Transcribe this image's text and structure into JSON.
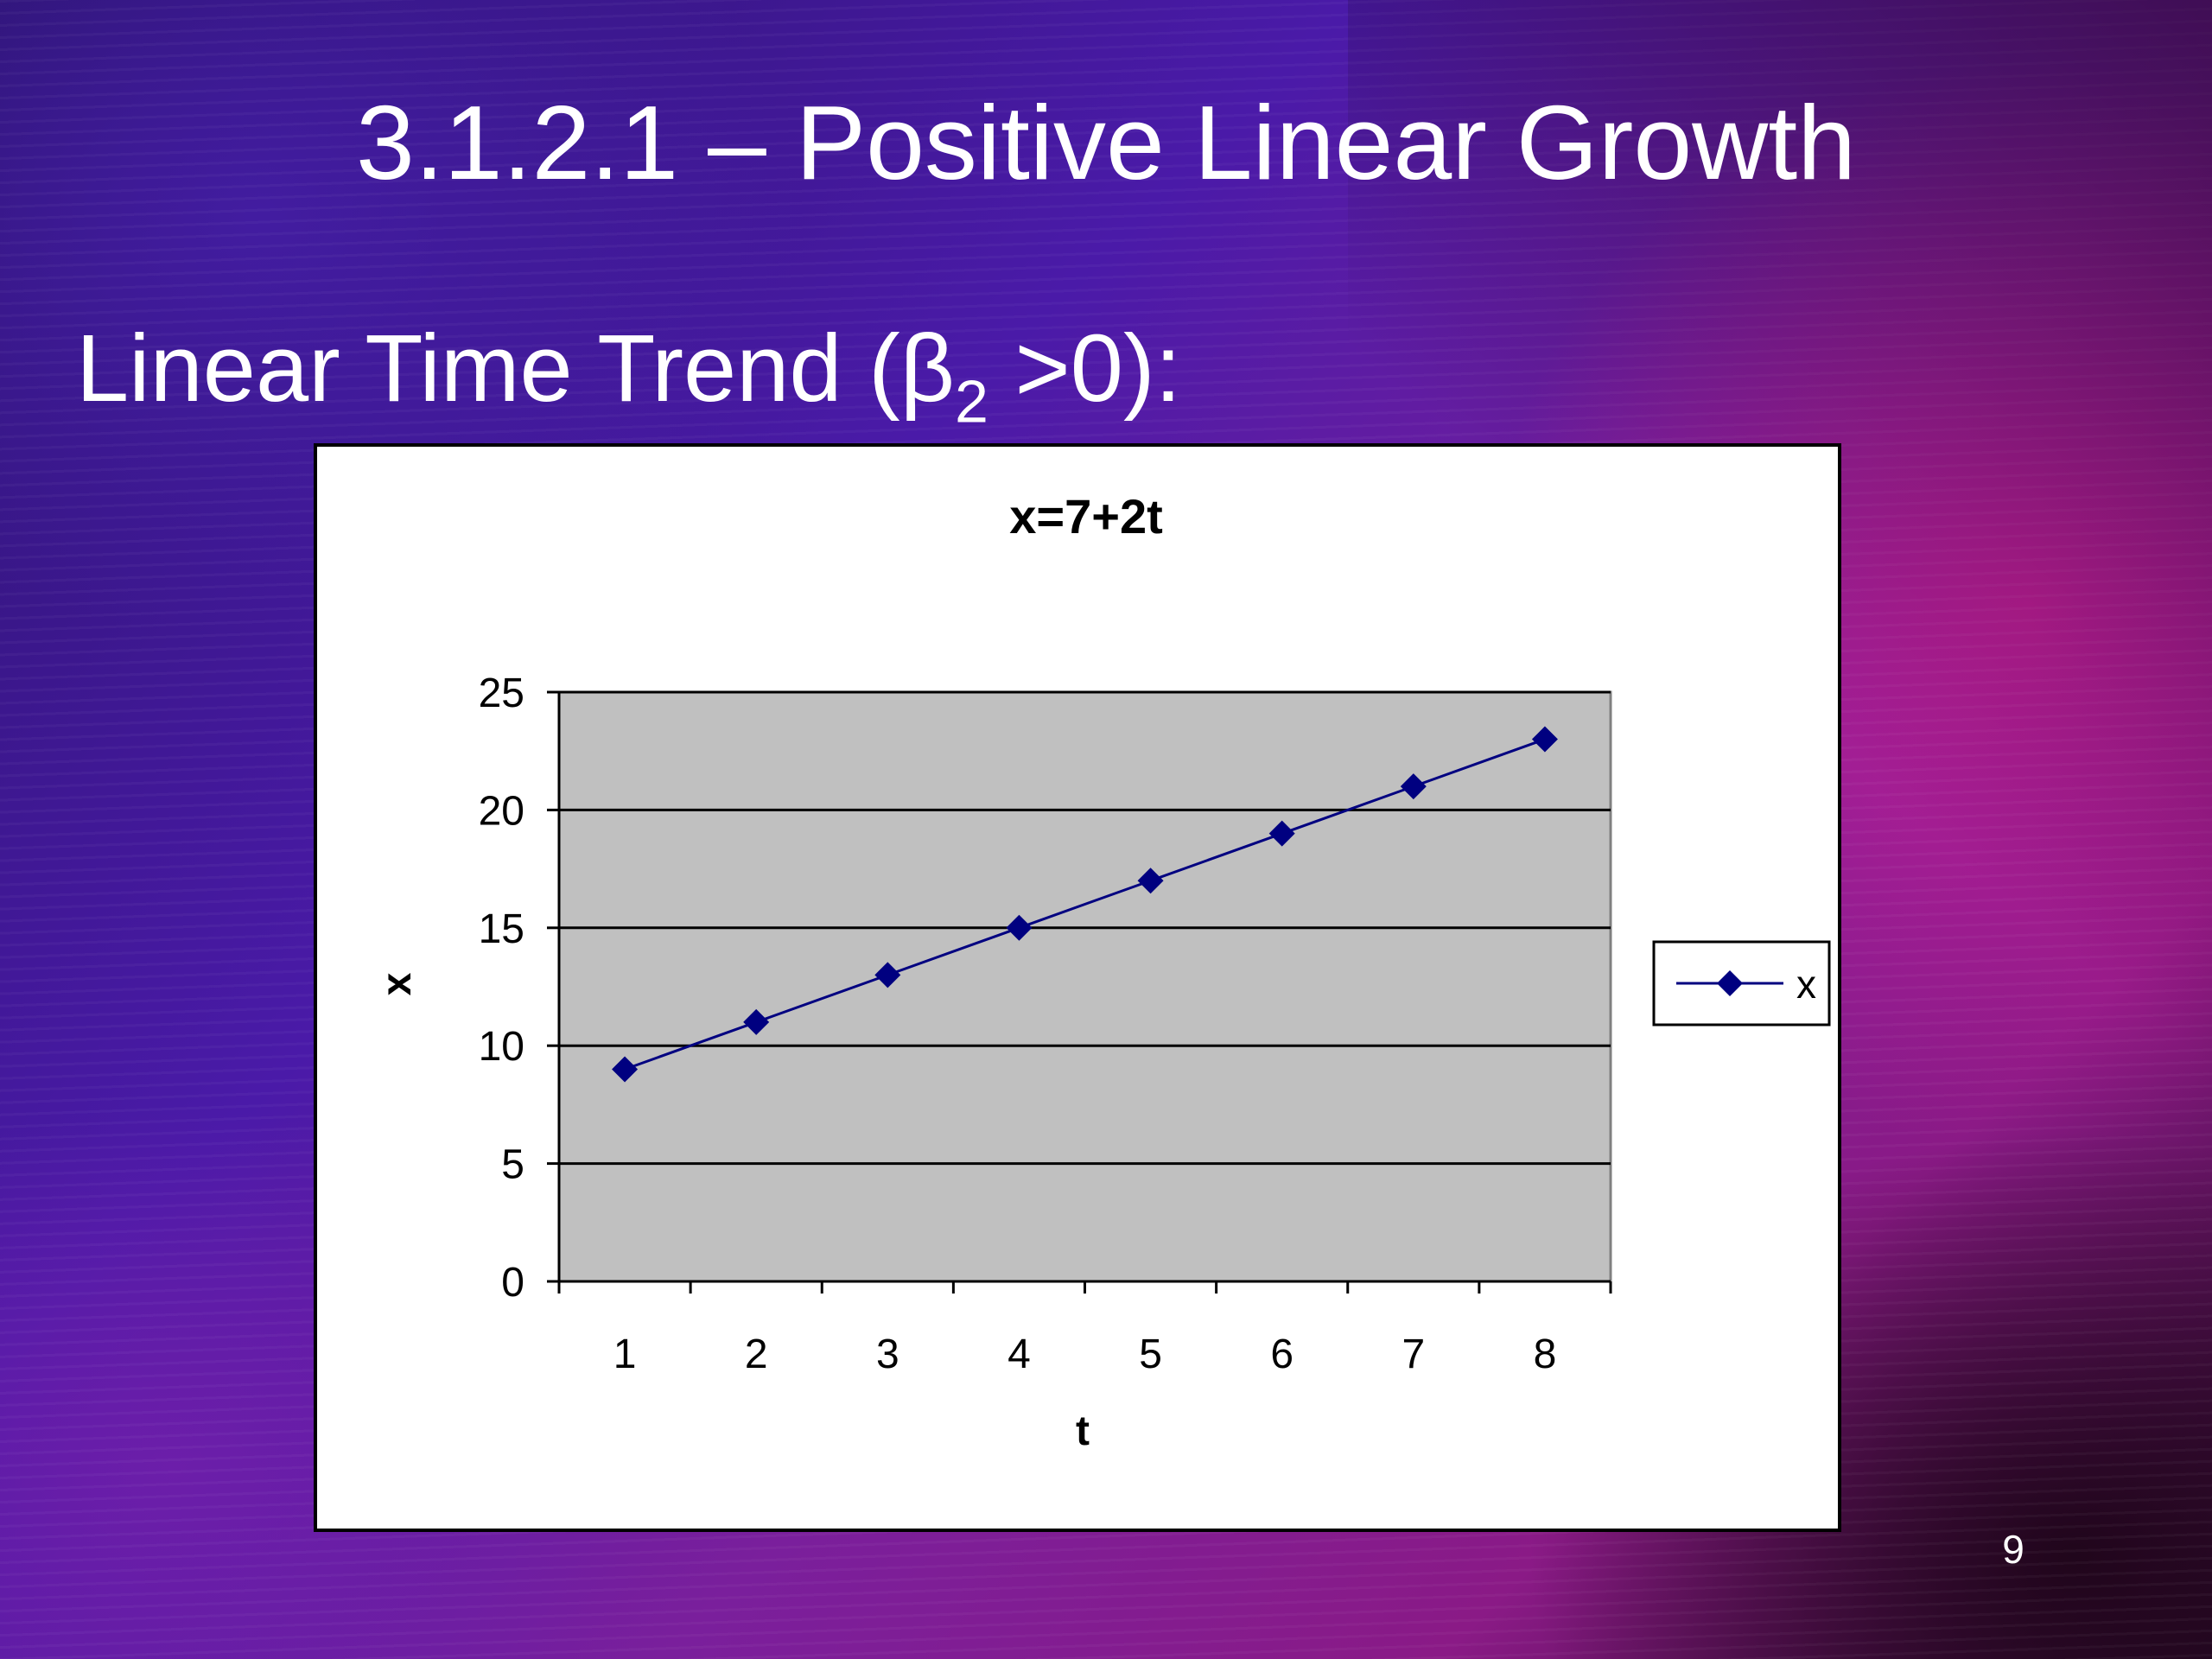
{
  "slide": {
    "title": "3.1.2.1 – Positive Linear Growth",
    "subtitle": {
      "prefix": "Linear Time Trend (β",
      "subscript": "2",
      "suffix": " >0):"
    },
    "page_number": "9"
  },
  "chart_data": {
    "type": "line",
    "title": "x=7+2t",
    "xlabel": "t",
    "ylabel": "x",
    "categories": [
      "1",
      "2",
      "3",
      "4",
      "5",
      "6",
      "7",
      "8"
    ],
    "series": [
      {
        "name": "x",
        "values": [
          9,
          11,
          13,
          15,
          17,
          19,
          21,
          23
        ],
        "color": "#000080",
        "marker": "diamond"
      }
    ],
    "ylim": [
      0,
      25
    ],
    "yticks": [
      0,
      5,
      10,
      15,
      20,
      25
    ],
    "grid": true,
    "plot_background": "#c0c0c0",
    "legend_position": "right"
  }
}
